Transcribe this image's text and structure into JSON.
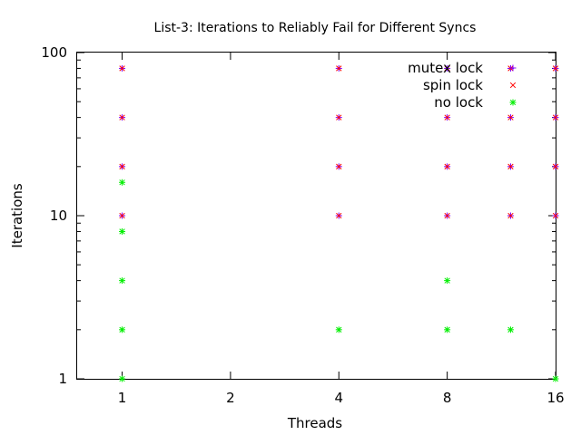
{
  "chart_data": {
    "type": "scatter",
    "title": "List-3: Iterations to Reliably Fail for Different Syncs",
    "xlabel": "Threads",
    "ylabel": "Iterations",
    "x_scale": "log2",
    "y_scale": "log10",
    "xlim": [
      0.75,
      16
    ],
    "ylim": [
      1,
      100
    ],
    "x_ticks": [
      {
        "value": 1,
        "label": "1"
      },
      {
        "value": 2,
        "label": "2"
      },
      {
        "value": 4,
        "label": "4"
      },
      {
        "value": 8,
        "label": "8"
      },
      {
        "value": 16,
        "label": "16"
      }
    ],
    "y_ticks": [
      {
        "value": 1,
        "label": "1"
      },
      {
        "value": 10,
        "label": "10"
      },
      {
        "value": 100,
        "label": "100"
      }
    ],
    "y_minor_ticks": [
      2,
      3,
      4,
      5,
      6,
      7,
      8,
      9,
      20,
      30,
      40,
      50,
      60,
      70,
      80,
      90
    ],
    "grid": false,
    "legend_position": "top-right",
    "series": [
      {
        "name": "mutex lock",
        "marker": "+",
        "color": "#8000ff",
        "points": [
          [
            1,
            10
          ],
          [
            1,
            20
          ],
          [
            1,
            40
          ],
          [
            1,
            80
          ],
          [
            4,
            10
          ],
          [
            4,
            20
          ],
          [
            4,
            40
          ],
          [
            4,
            80
          ],
          [
            8,
            10
          ],
          [
            8,
            20
          ],
          [
            8,
            40
          ],
          [
            8,
            80
          ],
          [
            12,
            10
          ],
          [
            12,
            20
          ],
          [
            12,
            40
          ],
          [
            12,
            80
          ],
          [
            16,
            10
          ],
          [
            16,
            20
          ],
          [
            16,
            40
          ],
          [
            16,
            80
          ]
        ]
      },
      {
        "name": "spin lock",
        "marker": "x",
        "color": "#ff0000",
        "points": [
          [
            1,
            10
          ],
          [
            1,
            20
          ],
          [
            1,
            40
          ],
          [
            1,
            80
          ],
          [
            4,
            10
          ],
          [
            4,
            20
          ],
          [
            4,
            40
          ],
          [
            4,
            80
          ],
          [
            8,
            10
          ],
          [
            8,
            20
          ],
          [
            8,
            40
          ],
          [
            8,
            80
          ],
          [
            12,
            10
          ],
          [
            12,
            20
          ],
          [
            12,
            40
          ],
          [
            12,
            80
          ],
          [
            16,
            10
          ],
          [
            16,
            20
          ],
          [
            16,
            40
          ],
          [
            16,
            80
          ]
        ]
      },
      {
        "name": "no lock",
        "marker": "*",
        "color": "#00ee00",
        "points": [
          [
            1,
            1
          ],
          [
            1,
            2
          ],
          [
            1,
            4
          ],
          [
            1,
            8
          ],
          [
            1,
            16
          ],
          [
            4,
            2
          ],
          [
            8,
            2
          ],
          [
            8,
            4
          ],
          [
            12,
            2
          ],
          [
            16,
            1
          ]
        ]
      }
    ]
  }
}
